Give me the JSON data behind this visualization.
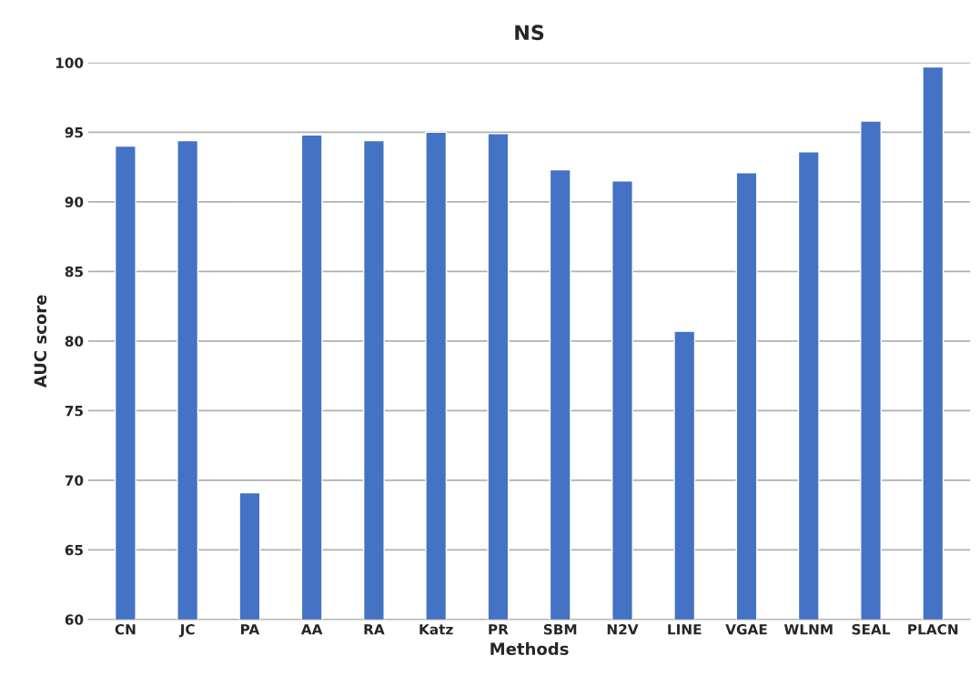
{
  "chart_data": {
    "type": "bar",
    "title": "NS",
    "xlabel": "Methods",
    "ylabel": "AUC score",
    "categories": [
      "CN",
      "JC",
      "PA",
      "AA",
      "RA",
      "Katz",
      "PR",
      "SBM",
      "N2V",
      "LINE",
      "VGAE",
      "WLNM",
      "SEAL",
      "PLACN"
    ],
    "values": [
      94.0,
      94.4,
      69.1,
      94.8,
      94.4,
      95.0,
      94.9,
      92.3,
      91.5,
      80.7,
      92.1,
      93.6,
      95.8,
      99.7
    ],
    "color": "#4472c4",
    "ylim": [
      60,
      100
    ],
    "yticks": [
      60,
      65,
      70,
      75,
      80,
      85,
      90,
      95,
      100
    ],
    "grid": "y"
  }
}
